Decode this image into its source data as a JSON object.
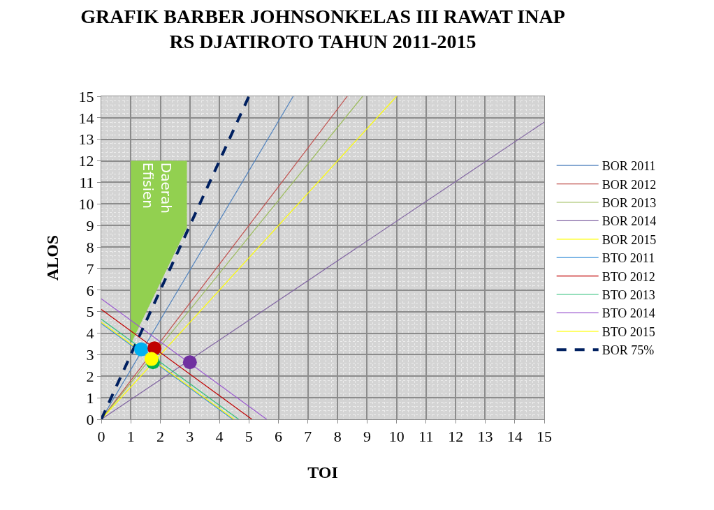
{
  "chart_data": {
    "type": "line",
    "title": "GRAFIK BARBER JOHNSONKELAS III RAWAT INAP\nRS DJATIROTO TAHUN 2011-2015",
    "xlabel": "TOI",
    "ylabel": "ALOS",
    "xlim": [
      0,
      15
    ],
    "ylim": [
      0,
      15
    ],
    "xticks": [
      0,
      1,
      2,
      3,
      4,
      5,
      6,
      7,
      8,
      9,
      10,
      11,
      12,
      13,
      14,
      15
    ],
    "yticks": [
      0,
      1,
      2,
      3,
      4,
      5,
      6,
      7,
      8,
      9,
      10,
      11,
      12,
      13,
      14,
      15
    ],
    "grid": true,
    "legend": "right",
    "marker": "none",
    "annotations": [
      "Daerah Efisien"
    ],
    "series": [
      {
        "type": "area",
        "color": "#92d050",
        "x": [
          1,
          1,
          2.9,
          2.9,
          1
        ],
        "values": [
          3.5,
          12,
          12,
          8.9,
          3.5
        ]
      },
      {
        "name": "BOR 2011",
        "color": "#4f81bd",
        "x": [
          0,
          6.5
        ],
        "values": [
          0,
          15
        ]
      },
      {
        "name": "BOR 2012",
        "color": "#c0504d",
        "x": [
          0,
          8.33
        ],
        "values": [
          0,
          15
        ]
      },
      {
        "name": "BOR 2013",
        "color": "#9bbb59",
        "x": [
          0,
          8.85
        ],
        "values": [
          0,
          15
        ]
      },
      {
        "name": "BOR 2014",
        "color": "#8064a2",
        "x": [
          0,
          15
        ],
        "values": [
          0,
          13.8
        ]
      },
      {
        "name": "BOR 2015",
        "color": "#ffff00",
        "x": [
          0,
          10
        ],
        "values": [
          0,
          15
        ]
      },
      {
        "name": "BTO 2011",
        "color": "#3a8fd8",
        "x": [
          0,
          4.45
        ],
        "values": [
          4.45,
          0
        ]
      },
      {
        "name": "BTO 2012",
        "color": "#c00000",
        "x": [
          0,
          5.1
        ],
        "values": [
          5.1,
          0
        ]
      },
      {
        "name": "BTO 2013",
        "color": "#2fc07a",
        "x": [
          0,
          4.65
        ],
        "values": [
          4.65,
          0
        ]
      },
      {
        "name": "BTO 2014",
        "color": "#9b59d0",
        "x": [
          0,
          5.6
        ],
        "values": [
          5.6,
          0
        ]
      },
      {
        "name": "BTO 2015",
        "color": "#ffff00",
        "x": [
          0,
          4.5
        ],
        "values": [
          4.5,
          0
        ]
      },
      {
        "name": "BOR 75%",
        "color": "#002060",
        "line_style": "dashed",
        "x": [
          0,
          5
        ],
        "values": [
          0,
          15
        ]
      },
      {
        "type": "scatter",
        "marker": "circle",
        "colors": [
          "#00b0f0",
          "#c00000",
          "#00b050",
          "#ffff00",
          "#7030a0"
        ],
        "x": [
          1.35,
          1.8,
          1.75,
          1.7,
          3.0
        ],
        "values": [
          3.25,
          3.3,
          2.65,
          2.8,
          2.65
        ]
      }
    ]
  }
}
